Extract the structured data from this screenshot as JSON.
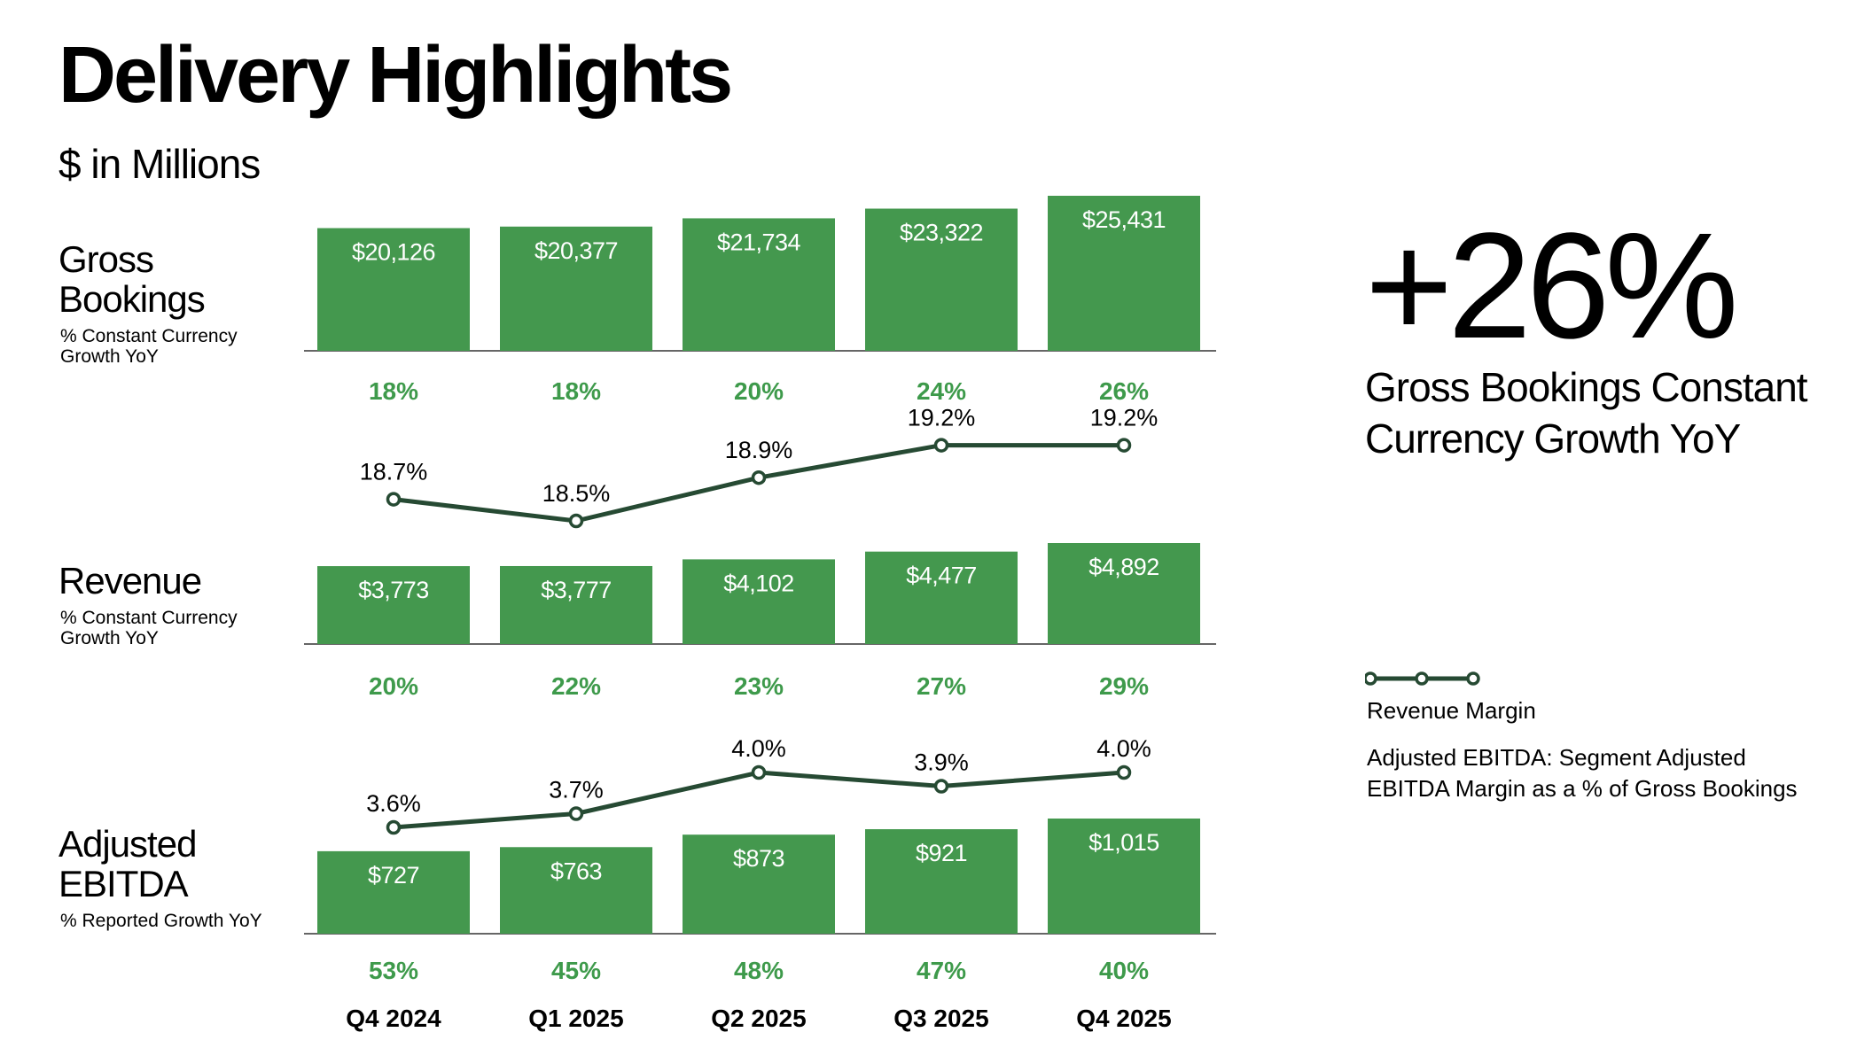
{
  "header": {
    "title": "Delivery Highlights",
    "subtitle": "$ in Millions"
  },
  "colors": {
    "bar": "#44984E",
    "growth_text": "#3E9A4B",
    "margin_line": "#264A33",
    "axis": "#333333",
    "text": "#000000"
  },
  "sections": [
    {
      "label_line1": "Gross",
      "label_line2": "Bookings",
      "sub_line1": "% Constant Currency",
      "sub_line2": "Growth YoY"
    },
    {
      "label_line1": "Revenue",
      "label_line2": "",
      "sub_line1": "% Constant Currency",
      "sub_line2": "Growth YoY"
    },
    {
      "label_line1": "Adjusted",
      "label_line2": "EBITDA",
      "sub_line1": "% Reported Growth YoY",
      "sub_line2": ""
    }
  ],
  "kpi": {
    "value": "+26%",
    "caption": "Gross Bookings Constant Currency Growth YoY"
  },
  "legend": {
    "line_label": "Revenue Margin",
    "note": "Adjusted EBITDA: Segment Adjusted EBITDA Margin as a % of Gross Bookings",
    "icon": "line-with-circle-markers"
  },
  "chart_data": [
    {
      "type": "bar",
      "categories": [
        "Q4 2024",
        "Q1 2025",
        "Q2 2025",
        "Q3 2025",
        "Q4 2025"
      ],
      "values": [
        20126,
        20377,
        21734,
        23322,
        25431
      ],
      "value_labels": [
        "$20,126",
        "$20,377",
        "$21,734",
        "$23,322",
        "$25,431"
      ],
      "growth_labels": [
        "18%",
        "18%",
        "20%",
        "24%",
        "26%"
      ],
      "growth": [
        18,
        18,
        20,
        24,
        26
      ]
    },
    {
      "type": "bar",
      "categories": [
        "Q4 2024",
        "Q1 2025",
        "Q2 2025",
        "Q3 2025",
        "Q4 2025"
      ],
      "values": [
        3773,
        3777,
        4102,
        4477,
        4892
      ],
      "value_labels": [
        "$3,773",
        "$3,777",
        "$4,102",
        "$4,477",
        "$4,892"
      ],
      "growth_labels": [
        "20%",
        "22%",
        "23%",
        "27%",
        "29%"
      ],
      "growth": [
        20,
        22,
        23,
        27,
        29
      ],
      "margin": [
        18.7,
        18.5,
        18.9,
        19.2,
        19.2
      ],
      "margin_labels": [
        "18.7%",
        "18.5%",
        "18.9%",
        "19.2%",
        "19.2%"
      ]
    },
    {
      "type": "bar",
      "categories": [
        "Q4 2024",
        "Q1 2025",
        "Q2 2025",
        "Q3 2025",
        "Q4 2025"
      ],
      "values": [
        727,
        763,
        873,
        921,
        1015
      ],
      "value_labels": [
        "$727",
        "$763",
        "$873",
        "$921",
        "$1,015"
      ],
      "growth_labels": [
        "53%",
        "45%",
        "48%",
        "47%",
        "40%"
      ],
      "growth": [
        53,
        45,
        48,
        47,
        40
      ],
      "margin": [
        3.6,
        3.7,
        4.0,
        3.9,
        4.0
      ],
      "margin_labels": [
        "3.6%",
        "3.7%",
        "4.0%",
        "3.9%",
        "4.0%"
      ]
    }
  ]
}
